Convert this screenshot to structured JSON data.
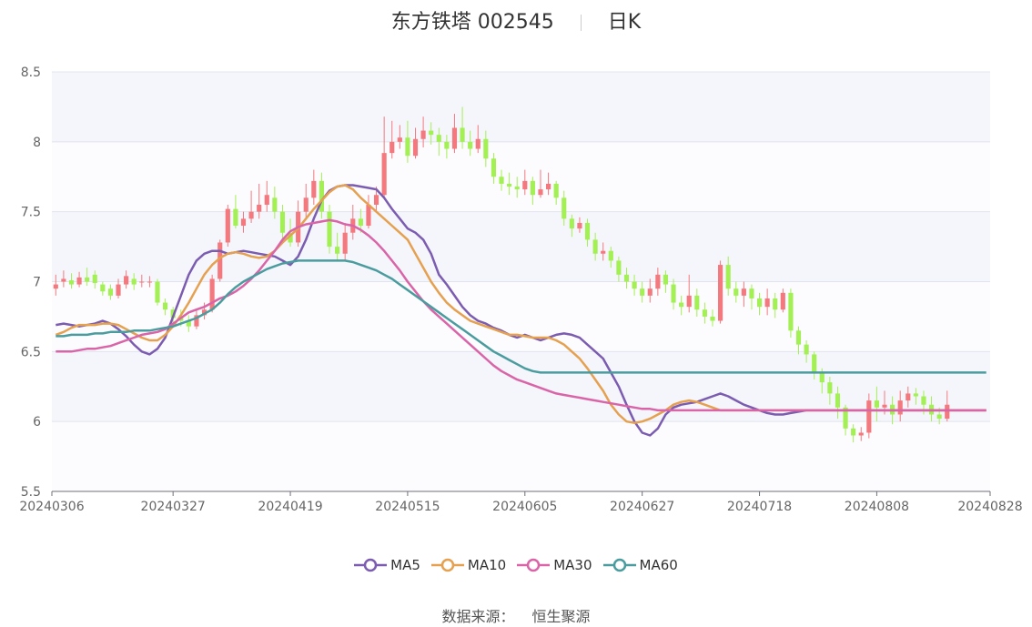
{
  "header": {
    "title": "东方铁塔 002545",
    "period": "日K"
  },
  "source": {
    "label": "数据来源：",
    "value": "恒生聚源"
  },
  "colors": {
    "up": "#F4797F",
    "down": "#A3F054",
    "MA5": "#7B5CB0",
    "MA10": "#E5A050",
    "MA30": "#D965A8",
    "MA60": "#4A9C9E"
  },
  "chart_data": {
    "type": "candlestick",
    "title": "东方铁塔 002545",
    "ylim": [
      5.5,
      8.5
    ],
    "yticks": [
      "8.5",
      "8",
      "7.5",
      "7",
      "6.5",
      "6",
      "5.5"
    ],
    "xticks": [
      "20240306",
      "20240327",
      "20240419",
      "20240515",
      "20240605",
      "20240627",
      "20240718",
      "20240808",
      "20240828"
    ],
    "xtick_index": [
      0,
      15,
      30,
      45,
      60,
      75,
      90,
      105,
      119
    ],
    "n_bars": 120,
    "candles": [
      [
        6.95,
        6.98,
        7.05,
        6.9
      ],
      [
        7.0,
        7.02,
        7.08,
        6.96
      ],
      [
        7.01,
        6.98,
        7.06,
        6.95
      ],
      [
        6.98,
        7.03,
        7.07,
        6.96
      ],
      [
        7.03,
        7.0,
        7.1,
        6.97
      ],
      [
        7.05,
        6.99,
        7.08,
        6.95
      ],
      [
        6.98,
        6.93,
        7.0,
        6.9
      ],
      [
        6.95,
        6.9,
        6.98,
        6.87
      ],
      [
        6.9,
        6.98,
        7.02,
        6.88
      ],
      [
        6.98,
        7.04,
        7.08,
        6.95
      ],
      [
        7.02,
        6.98,
        7.06,
        6.94
      ],
      [
        7.0,
        7.0,
        7.05,
        6.96
      ],
      [
        7.0,
        7.0,
        7.04,
        6.96
      ],
      [
        7.0,
        6.85,
        7.02,
        6.83
      ],
      [
        6.85,
        6.8,
        6.88,
        6.76
      ],
      [
        6.8,
        6.74,
        6.82,
        6.7
      ],
      [
        6.75,
        6.72,
        6.8,
        6.68
      ],
      [
        6.72,
        6.68,
        6.76,
        6.64
      ],
      [
        6.68,
        6.76,
        6.8,
        6.66
      ],
      [
        6.76,
        6.8,
        6.85,
        6.73
      ],
      [
        6.8,
        7.02,
        7.05,
        6.78
      ],
      [
        7.02,
        7.28,
        7.3,
        7.0
      ],
      [
        7.28,
        7.52,
        7.55,
        7.25
      ],
      [
        7.52,
        7.4,
        7.62,
        7.38
      ],
      [
        7.4,
        7.45,
        7.5,
        7.35
      ],
      [
        7.45,
        7.5,
        7.65,
        7.42
      ],
      [
        7.5,
        7.55,
        7.7,
        7.45
      ],
      [
        7.55,
        7.62,
        7.72,
        7.5
      ],
      [
        7.6,
        7.5,
        7.68,
        7.45
      ],
      [
        7.5,
        7.35,
        7.55,
        7.3
      ],
      [
        7.35,
        7.28,
        7.45,
        7.25
      ],
      [
        7.28,
        7.5,
        7.58,
        7.25
      ],
      [
        7.5,
        7.6,
        7.7,
        7.45
      ],
      [
        7.6,
        7.72,
        7.8,
        7.55
      ],
      [
        7.72,
        7.5,
        7.78,
        7.45
      ],
      [
        7.5,
        7.25,
        7.55,
        7.2
      ],
      [
        7.25,
        7.2,
        7.35,
        7.15
      ],
      [
        7.2,
        7.35,
        7.42,
        7.15
      ],
      [
        7.35,
        7.45,
        7.55,
        7.3
      ],
      [
        7.45,
        7.4,
        7.52,
        7.35
      ],
      [
        7.4,
        7.55,
        7.62,
        7.38
      ],
      [
        7.55,
        7.62,
        7.68,
        7.5
      ],
      [
        7.62,
        7.92,
        8.18,
        7.6
      ],
      [
        7.92,
        8.0,
        8.15,
        7.88
      ],
      [
        8.0,
        8.03,
        8.12,
        7.95
      ],
      [
        8.03,
        7.9,
        8.15,
        7.85
      ],
      [
        7.9,
        8.02,
        8.1,
        7.88
      ],
      [
        8.02,
        8.08,
        8.18,
        7.96
      ],
      [
        8.08,
        8.05,
        8.14,
        7.98
      ],
      [
        8.05,
        8.0,
        8.1,
        7.9
      ],
      [
        8.0,
        7.95,
        8.05,
        7.88
      ],
      [
        7.95,
        8.1,
        8.2,
        7.92
      ],
      [
        8.1,
        8.0,
        8.25,
        7.95
      ],
      [
        8.0,
        7.95,
        8.08,
        7.9
      ],
      [
        7.95,
        8.02,
        8.12,
        7.92
      ],
      [
        8.02,
        7.88,
        8.08,
        7.82
      ],
      [
        7.88,
        7.75,
        7.92,
        7.7
      ],
      [
        7.75,
        7.7,
        7.8,
        7.65
      ],
      [
        7.7,
        7.68,
        7.78,
        7.62
      ],
      [
        7.68,
        7.66,
        7.75,
        7.6
      ],
      [
        7.66,
        7.72,
        7.8,
        7.62
      ],
      [
        7.72,
        7.62,
        7.75,
        7.55
      ],
      [
        7.62,
        7.66,
        7.8,
        7.6
      ],
      [
        7.66,
        7.7,
        7.78,
        7.62
      ],
      [
        7.7,
        7.6,
        7.72,
        7.55
      ],
      [
        7.6,
        7.45,
        7.65,
        7.4
      ],
      [
        7.45,
        7.38,
        7.48,
        7.32
      ],
      [
        7.38,
        7.42,
        7.46,
        7.35
      ],
      [
        7.42,
        7.3,
        7.45,
        7.25
      ],
      [
        7.3,
        7.2,
        7.35,
        7.15
      ],
      [
        7.2,
        7.22,
        7.28,
        7.15
      ],
      [
        7.22,
        7.15,
        7.25,
        7.1
      ],
      [
        7.15,
        7.05,
        7.18,
        7.0
      ],
      [
        7.05,
        7.0,
        7.1,
        6.95
      ],
      [
        7.0,
        6.95,
        7.05,
        6.9
      ],
      [
        6.95,
        6.9,
        7.0,
        6.85
      ],
      [
        6.9,
        6.95,
        7.02,
        6.85
      ],
      [
        6.95,
        7.05,
        7.1,
        6.9
      ],
      [
        7.05,
        6.98,
        7.08,
        6.92
      ],
      [
        6.98,
        6.85,
        7.02,
        6.8
      ],
      [
        6.85,
        6.82,
        6.9,
        6.76
      ],
      [
        6.82,
        6.9,
        7.05,
        6.78
      ],
      [
        6.9,
        6.8,
        6.95,
        6.75
      ],
      [
        6.8,
        6.75,
        6.85,
        6.7
      ],
      [
        6.75,
        6.72,
        6.8,
        6.68
      ],
      [
        6.72,
        7.12,
        7.15,
        6.7
      ],
      [
        7.12,
        6.95,
        7.18,
        6.9
      ],
      [
        6.95,
        6.9,
        7.0,
        6.85
      ],
      [
        6.9,
        6.95,
        7.0,
        6.82
      ],
      [
        6.95,
        6.88,
        6.98,
        6.8
      ],
      [
        6.88,
        6.82,
        6.92,
        6.76
      ],
      [
        6.82,
        6.88,
        6.95,
        6.76
      ],
      [
        6.88,
        6.8,
        6.92,
        6.74
      ],
      [
        6.8,
        6.92,
        6.95,
        6.78
      ],
      [
        6.92,
        6.65,
        6.95,
        6.6
      ],
      [
        6.65,
        6.55,
        6.68,
        6.48
      ],
      [
        6.55,
        6.48,
        6.58,
        6.42
      ],
      [
        6.48,
        6.35,
        6.5,
        6.3
      ],
      [
        6.35,
        6.28,
        6.38,
        6.2
      ],
      [
        6.28,
        6.2,
        6.32,
        6.12
      ],
      [
        6.2,
        6.1,
        6.25,
        6.02
      ],
      [
        6.1,
        5.95,
        6.12,
        5.9
      ],
      [
        5.95,
        5.9,
        5.98,
        5.85
      ],
      [
        5.9,
        5.92,
        5.96,
        5.86
      ],
      [
        5.92,
        6.15,
        6.2,
        5.88
      ],
      [
        6.15,
        6.1,
        6.25,
        6.0
      ],
      [
        6.1,
        6.12,
        6.22,
        6.05
      ],
      [
        6.12,
        6.05,
        6.18,
        5.98
      ],
      [
        6.05,
        6.15,
        6.22,
        6.0
      ],
      [
        6.15,
        6.2,
        6.25,
        6.1
      ],
      [
        6.2,
        6.18,
        6.24,
        6.12
      ],
      [
        6.18,
        6.12,
        6.22,
        6.05
      ],
      [
        6.12,
        6.05,
        6.18,
        6.0
      ],
      [
        6.05,
        6.02,
        6.1,
        5.98
      ],
      [
        6.02,
        6.12,
        6.22,
        6.0
      ]
    ],
    "series": [
      {
        "name": "MA5",
        "values": [
          6.69,
          6.7,
          6.69,
          6.68,
          6.69,
          6.7,
          6.72,
          6.7,
          6.66,
          6.61,
          6.55,
          6.5,
          6.48,
          6.52,
          6.6,
          6.75,
          6.9,
          7.05,
          7.15,
          7.2,
          7.22,
          7.22,
          7.2,
          7.21,
          7.22,
          7.21,
          7.2,
          7.19,
          7.18,
          7.15,
          7.12,
          7.18,
          7.3,
          7.45,
          7.58,
          7.65,
          7.68,
          7.69,
          7.69,
          7.68,
          7.67,
          7.66,
          7.6,
          7.52,
          7.45,
          7.38,
          7.35,
          7.3,
          7.2,
          7.05,
          6.98,
          6.9,
          6.82,
          6.76,
          6.72,
          6.7,
          6.67,
          6.65,
          6.62,
          6.6,
          6.62,
          6.6,
          6.58,
          6.6,
          6.62,
          6.63,
          6.62,
          6.6,
          6.55,
          6.5,
          6.45,
          6.35,
          6.25,
          6.12,
          6.0,
          5.92,
          5.9,
          5.95,
          6.05,
          6.1,
          6.12,
          6.13,
          6.14,
          6.16,
          6.18,
          6.2,
          6.18,
          6.15,
          6.12,
          6.1,
          6.08,
          6.06,
          6.05,
          6.05,
          6.06,
          6.07,
          6.08,
          6.08,
          6.08,
          6.08,
          6.08,
          6.08,
          6.08,
          6.08,
          6.08,
          6.08,
          6.08,
          6.08,
          6.08,
          6.08,
          6.08,
          6.08,
          6.08,
          6.08,
          6.08,
          6.08,
          6.08,
          6.08,
          6.08,
          6.08
        ]
      },
      {
        "name": "MA10",
        "values": [
          6.62,
          6.64,
          6.67,
          6.69,
          6.69,
          6.69,
          6.7,
          6.7,
          6.69,
          6.66,
          6.63,
          6.6,
          6.58,
          6.58,
          6.62,
          6.68,
          6.76,
          6.85,
          6.95,
          7.05,
          7.12,
          7.17,
          7.2,
          7.21,
          7.2,
          7.18,
          7.17,
          7.18,
          7.22,
          7.28,
          7.33,
          7.38,
          7.45,
          7.52,
          7.58,
          7.64,
          7.68,
          7.69,
          7.66,
          7.6,
          7.55,
          7.5,
          7.45,
          7.4,
          7.35,
          7.3,
          7.2,
          7.1,
          7.0,
          6.92,
          6.85,
          6.8,
          6.76,
          6.72,
          6.7,
          6.68,
          6.66,
          6.64,
          6.62,
          6.62,
          6.61,
          6.6,
          6.6,
          6.6,
          6.58,
          6.55,
          6.5,
          6.45,
          6.38,
          6.3,
          6.22,
          6.12,
          6.05,
          6.0,
          5.99,
          6.0,
          6.02,
          6.05,
          6.08,
          6.12,
          6.14,
          6.15,
          6.14,
          6.12,
          6.1,
          6.08,
          6.08,
          6.08,
          6.08,
          6.08,
          6.08,
          6.08,
          6.08,
          6.08,
          6.08,
          6.08,
          6.08,
          6.08,
          6.08,
          6.08,
          6.08,
          6.08,
          6.08,
          6.08,
          6.08,
          6.08,
          6.08,
          6.08,
          6.08,
          6.08,
          6.08,
          6.08,
          6.08,
          6.08,
          6.08,
          6.08,
          6.08,
          6.08,
          6.08,
          6.08
        ]
      },
      {
        "name": "MA30",
        "values": [
          6.5,
          6.5,
          6.5,
          6.51,
          6.52,
          6.52,
          6.53,
          6.54,
          6.56,
          6.58,
          6.6,
          6.62,
          6.63,
          6.64,
          6.66,
          6.7,
          6.74,
          6.78,
          6.8,
          6.82,
          6.85,
          6.88,
          6.9,
          6.93,
          6.97,
          7.02,
          7.08,
          7.15,
          7.22,
          7.3,
          7.36,
          7.39,
          7.41,
          7.42,
          7.43,
          7.44,
          7.43,
          7.41,
          7.4,
          7.37,
          7.33,
          7.28,
          7.22,
          7.15,
          7.08,
          7.0,
          6.93,
          6.86,
          6.8,
          6.75,
          6.7,
          6.65,
          6.6,
          6.55,
          6.5,
          6.45,
          6.4,
          6.36,
          6.33,
          6.3,
          6.28,
          6.26,
          6.24,
          6.22,
          6.2,
          6.19,
          6.18,
          6.17,
          6.16,
          6.15,
          6.14,
          6.13,
          6.12,
          6.11,
          6.1,
          6.09,
          6.09,
          6.08,
          6.08,
          6.08,
          6.08,
          6.08,
          6.08,
          6.08,
          6.08,
          6.08,
          6.08,
          6.08,
          6.08,
          6.08,
          6.08,
          6.08,
          6.08,
          6.08,
          6.08,
          6.08,
          6.08,
          6.08,
          6.08,
          6.08,
          6.08,
          6.08,
          6.08,
          6.08,
          6.08,
          6.08,
          6.08,
          6.08,
          6.08,
          6.08,
          6.08,
          6.08,
          6.08,
          6.08,
          6.08,
          6.08,
          6.08,
          6.08,
          6.08,
          6.08
        ]
      },
      {
        "name": "MA60",
        "values": [
          6.61,
          6.61,
          6.62,
          6.62,
          6.62,
          6.63,
          6.63,
          6.64,
          6.64,
          6.64,
          6.65,
          6.65,
          6.65,
          6.66,
          6.67,
          6.68,
          6.7,
          6.72,
          6.74,
          6.77,
          6.8,
          6.85,
          6.91,
          6.96,
          7.0,
          7.03,
          7.06,
          7.09,
          7.11,
          7.13,
          7.14,
          7.15,
          7.15,
          7.15,
          7.15,
          7.15,
          7.15,
          7.15,
          7.14,
          7.12,
          7.1,
          7.08,
          7.05,
          7.02,
          6.98,
          6.94,
          6.9,
          6.86,
          6.82,
          6.78,
          6.74,
          6.7,
          6.66,
          6.62,
          6.58,
          6.54,
          6.5,
          6.47,
          6.44,
          6.41,
          6.38,
          6.36,
          6.35,
          6.35,
          6.35,
          6.35,
          6.35,
          6.35,
          6.35,
          6.35,
          6.35,
          6.35,
          6.35,
          6.35,
          6.35,
          6.35,
          6.35,
          6.35,
          6.35,
          6.35,
          6.35,
          6.35,
          6.35,
          6.35,
          6.35,
          6.35,
          6.35,
          6.35,
          6.35,
          6.35,
          6.35,
          6.35,
          6.35,
          6.35,
          6.35,
          6.35,
          6.35,
          6.35,
          6.35,
          6.35,
          6.35,
          6.35,
          6.35,
          6.35,
          6.35,
          6.35,
          6.35,
          6.35,
          6.35,
          6.35,
          6.35,
          6.35,
          6.35,
          6.35,
          6.35,
          6.35,
          6.35,
          6.35,
          6.35,
          6.35
        ]
      }
    ],
    "legend": [
      "MA5",
      "MA10",
      "MA30",
      "MA60"
    ],
    "legend_position": "bottom-center",
    "grid": true
  }
}
